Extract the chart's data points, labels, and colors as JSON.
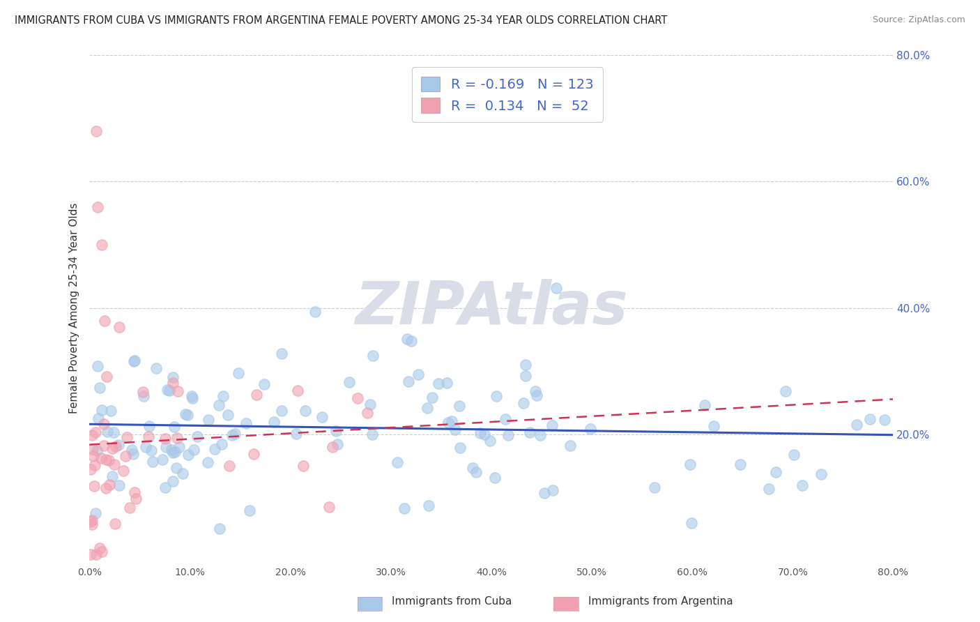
{
  "title": "IMMIGRANTS FROM CUBA VS IMMIGRANTS FROM ARGENTINA FEMALE POVERTY AMONG 25-34 YEAR OLDS CORRELATION CHART",
  "source": "Source: ZipAtlas.com",
  "ylabel": "Female Poverty Among 25-34 Year Olds",
  "xlim": [
    0,
    0.8
  ],
  "ylim": [
    0,
    0.8
  ],
  "xtick_vals": [
    0.0,
    0.1,
    0.2,
    0.3,
    0.4,
    0.5,
    0.6,
    0.7,
    0.8
  ],
  "ytick_vals": [
    0.0,
    0.2,
    0.4,
    0.6,
    0.8
  ],
  "cuba_color": "#a8c8e8",
  "argentina_color": "#f0a0b0",
  "cuba_R": -0.169,
  "cuba_N": 123,
  "argentina_R": 0.134,
  "argentina_N": 52,
  "cuba_line_color": "#3355bb",
  "argentina_line_color": "#cc3355",
  "watermark": "ZIPAtlas",
  "watermark_color": "#d8dde8",
  "legend_label_cuba": "Immigrants from Cuba",
  "legend_label_argentina": "Immigrants from Argentina",
  "grid_color": "#cccccc",
  "tick_color": "#4466cc",
  "label_color": "#333333"
}
